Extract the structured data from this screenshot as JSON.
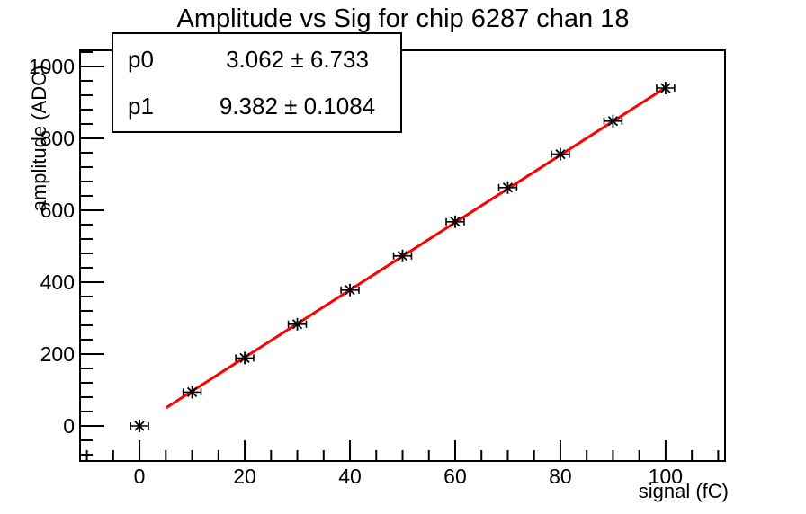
{
  "page": {
    "background_color": "#ffffff",
    "frame_border_color": "#000000"
  },
  "chart_data": {
    "type": "scatter",
    "title": "Amplitude vs Sig for chip 6287 chan 18",
    "xlabel": "signal (fC)",
    "ylabel": "amplitude (ADC)",
    "x": [
      0,
      10,
      20,
      30,
      40,
      50,
      60,
      70,
      80,
      90,
      100
    ],
    "y": [
      0,
      94,
      189,
      283,
      378,
      473,
      568,
      663,
      756,
      848,
      940
    ],
    "x_error": 1.7,
    "marker": "asterisk-with-x-error-bars",
    "marker_color": "#000000",
    "xlim": [
      -11.3,
      111.3
    ],
    "ylim": [
      -97.5,
      1045
    ],
    "xticks": [
      0,
      20,
      40,
      60,
      80,
      100
    ],
    "yticks": [
      0,
      200,
      400,
      600,
      800,
      1000
    ],
    "x_minor_step": 5,
    "y_minor_step": 40,
    "grid": false,
    "legend_position": "none",
    "fit": {
      "type": "linear",
      "p0": 3.062,
      "p1": 9.382,
      "x_range": [
        5,
        100
      ],
      "color": "#ff0000"
    }
  },
  "stats_box": {
    "rows": [
      {
        "name": "p0",
        "value": "3.062 ± 6.733"
      },
      {
        "name": "p1",
        "value": "9.382 ± 0.1084"
      }
    ]
  }
}
